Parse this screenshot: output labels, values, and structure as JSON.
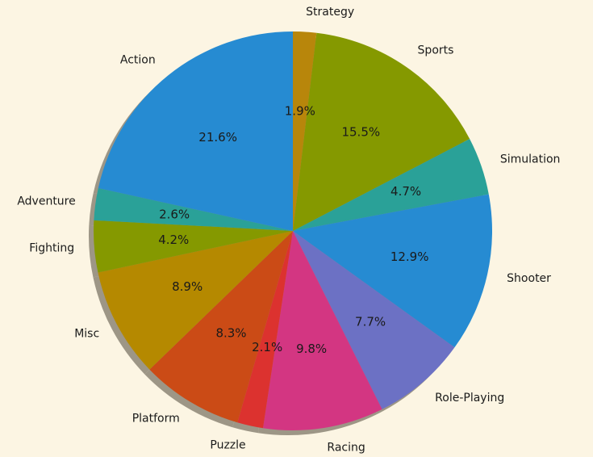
{
  "chart_data": {
    "type": "pie",
    "title": "",
    "start_angle_deg": 90,
    "direction": "clockwise",
    "slices": [
      {
        "label": "Strategy",
        "value": 1.9,
        "pct_label": "1.9%",
        "color": "#b8860b"
      },
      {
        "label": "Sports",
        "value": 15.5,
        "pct_label": "15.5%",
        "color": "#859900"
      },
      {
        "label": "Simulation",
        "value": 4.7,
        "pct_label": "4.7%",
        "color": "#2aa198"
      },
      {
        "label": "Shooter",
        "value": 12.9,
        "pct_label": "12.9%",
        "color": "#268bd2"
      },
      {
        "label": "Role-Playing",
        "value": 7.7,
        "pct_label": "7.7%",
        "color": "#6c71c4"
      },
      {
        "label": "Racing",
        "value": 9.8,
        "pct_label": "9.8%",
        "color": "#d33682"
      },
      {
        "label": "Puzzle",
        "value": 2.1,
        "pct_label": "2.1%",
        "color": "#dc322f"
      },
      {
        "label": "Platform",
        "value": 8.3,
        "pct_label": "8.3%",
        "color": "#cb4b16"
      },
      {
        "label": "Misc",
        "value": 8.9,
        "pct_label": "8.9%",
        "color": "#b58900"
      },
      {
        "label": "Fighting",
        "value": 4.2,
        "pct_label": "4.2%",
        "color": "#859900"
      },
      {
        "label": "Adventure",
        "value": 2.6,
        "pct_label": "2.6%",
        "color": "#2aa198"
      },
      {
        "label": "Action",
        "value": 21.6,
        "pct_label": "21.6%",
        "color": "#268bd2"
      }
    ],
    "shadow": true,
    "legend": "none"
  }
}
